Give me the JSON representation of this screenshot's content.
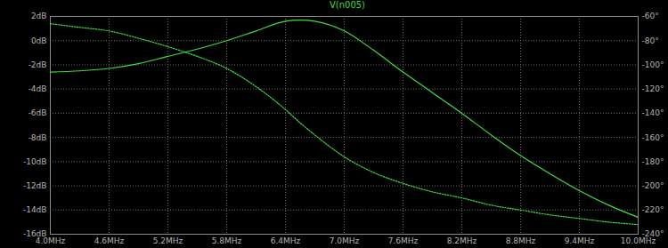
{
  "chart_data": {
    "type": "line",
    "title": "V(n005)",
    "x": [
      4.0,
      4.3,
      4.6,
      4.9,
      5.2,
      5.5,
      5.8,
      6.1,
      6.4,
      6.55,
      6.7,
      7.0,
      7.3,
      7.6,
      7.9,
      8.2,
      8.5,
      8.8,
      9.1,
      9.4,
      9.7,
      10.0
    ],
    "series": [
      {
        "color": "#3fdc3f",
        "line_style": "solid",
        "values": [
          -2.6,
          -2.5,
          -2.3,
          -1.9,
          -1.3,
          -0.7,
          0.0,
          0.8,
          1.6,
          1.7,
          1.6,
          0.8,
          -0.8,
          -2.6,
          -4.3,
          -6.0,
          -7.8,
          -9.5,
          -11.0,
          -12.4,
          -13.6,
          -14.6
        ]
      },
      {
        "color": "#3fdc3f",
        "line_style": "dotted",
        "axis": "y2",
        "values": [
          -66,
          -69,
          -72,
          -78,
          -85,
          -93,
          -103,
          -118,
          -137,
          -148,
          -158,
          -176,
          -189,
          -198,
          -205,
          -210,
          -216,
          -220,
          -224,
          -227,
          -230,
          -232
        ]
      }
    ],
    "xlim": [
      4.0,
      10.0
    ],
    "xticks": [
      {
        "value": 4.0,
        "label": "4.0MHz"
      },
      {
        "value": 4.6,
        "label": "4.6MHz"
      },
      {
        "value": 5.2,
        "label": "5.2MHz"
      },
      {
        "value": 5.8,
        "label": "5.8MHz"
      },
      {
        "value": 6.4,
        "label": "6.4MHz"
      },
      {
        "value": 7.0,
        "label": "7.0MHz"
      },
      {
        "value": 7.6,
        "label": "7.6MHz"
      },
      {
        "value": 8.2,
        "label": "8.2MHz"
      },
      {
        "value": 8.8,
        "label": "8.8MHz"
      },
      {
        "value": 9.4,
        "label": "9.4MHz"
      },
      {
        "value": 10.0,
        "label": "10.0MHz"
      }
    ],
    "ylim": [
      -16,
      2
    ],
    "yticks": [
      {
        "value": -16,
        "label": "-16dB"
      },
      {
        "value": -14,
        "label": "-14dB"
      },
      {
        "value": -12,
        "label": "-12dB"
      },
      {
        "value": -10,
        "label": "-10dB"
      },
      {
        "value": -8,
        "label": "-8dB"
      },
      {
        "value": -6,
        "label": "-6dB"
      },
      {
        "value": -4,
        "label": "-4dB"
      },
      {
        "value": -2,
        "label": "-2dB"
      },
      {
        "value": 0,
        "label": "0dB"
      },
      {
        "value": 2,
        "label": "2dB"
      }
    ],
    "y2lim": [
      -240,
      -60
    ],
    "y2ticks": [
      {
        "value": -240,
        "label": "-240°"
      },
      {
        "value": -220,
        "label": "-220°"
      },
      {
        "value": -200,
        "label": "-200°"
      },
      {
        "value": -180,
        "label": "-180°"
      },
      {
        "value": -160,
        "label": "-160°"
      },
      {
        "value": -140,
        "label": "-140°"
      },
      {
        "value": -120,
        "label": "-120°"
      },
      {
        "value": -100,
        "label": "-100°"
      },
      {
        "value": -80,
        "label": "-80°"
      },
      {
        "value": -60,
        "label": "-60°"
      }
    ],
    "grid": true
  }
}
